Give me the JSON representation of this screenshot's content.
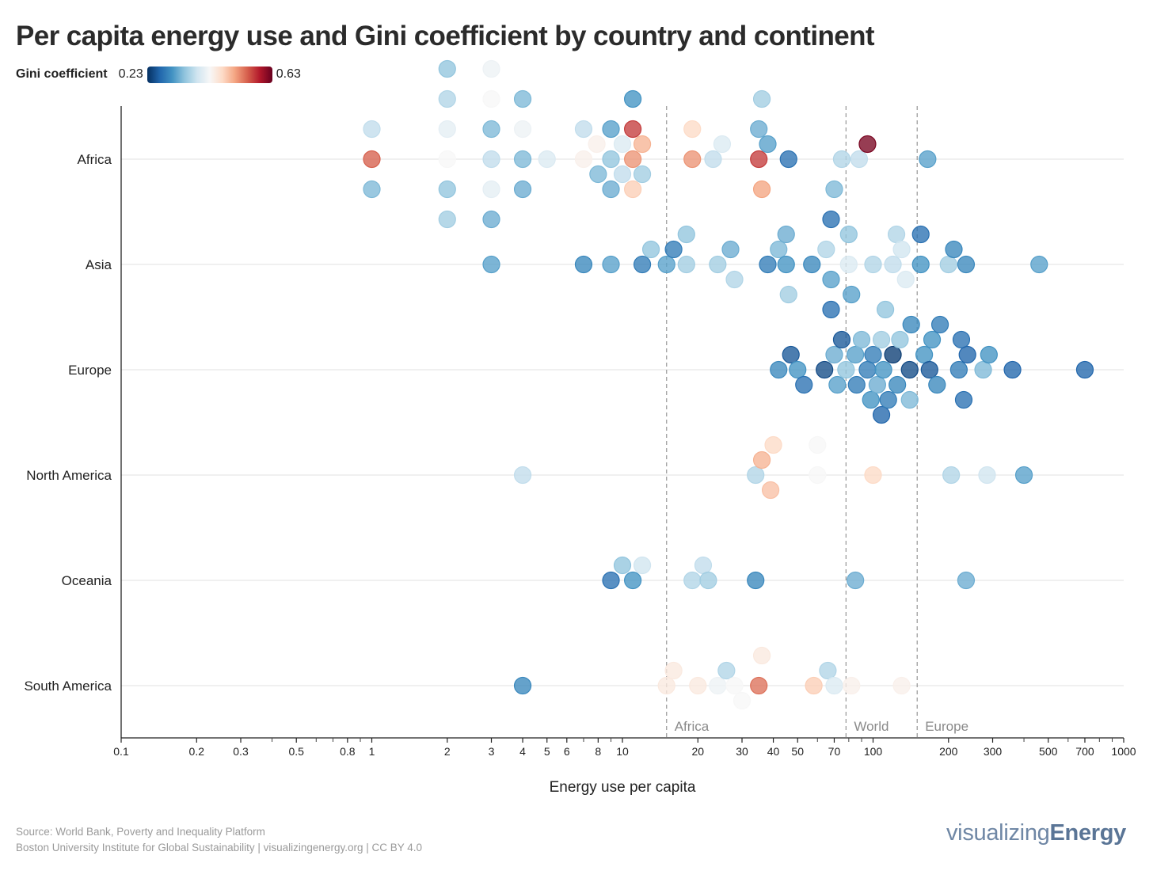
{
  "page": {
    "title": "Per capita energy use and Gini coefficient by country and continent",
    "source_line1": "Source: World Bank, Poverty and Inequality Platform",
    "source_line2": "Boston University Institute for Global Sustainability | visualizingenergy.org | CC BY 4.0",
    "brand_prefix": "visualizing",
    "brand_suffix": "Energy"
  },
  "legend": {
    "title": "Gini coefficient",
    "min_label": "0.23",
    "max_label": "0.63",
    "min": 0.23,
    "max": 0.63,
    "scale_colors": [
      "#053061",
      "#2166ac",
      "#4393c3",
      "#92c5de",
      "#d1e5f0",
      "#f7f7f7",
      "#fddbc7",
      "#f4a582",
      "#d6604d",
      "#b2182b",
      "#67001f"
    ]
  },
  "chart_data": {
    "type": "scatter",
    "title": "Per capita energy use and Gini coefficient by country and continent",
    "xlabel": "Energy use per capita",
    "ylabel": "",
    "xscale": "log",
    "xlim": [
      0.1,
      1000
    ],
    "x_ticks": [
      0.1,
      0.2,
      0.3,
      0.5,
      0.8,
      1,
      2,
      3,
      4,
      5,
      6,
      8,
      10,
      20,
      30,
      40,
      50,
      70,
      100,
      200,
      300,
      500,
      700,
      1000
    ],
    "x_tick_labels": [
      "0.1",
      "0.2",
      "0.3",
      "0.5",
      "0.8",
      "1",
      "2",
      "3",
      "4",
      "5",
      "6",
      "8",
      "10",
      "20",
      "30",
      "40",
      "50",
      "70",
      "100",
      "200",
      "300",
      "500",
      "700",
      "1000"
    ],
    "categories": [
      "Africa",
      "Asia",
      "Europe",
      "North America",
      "Oceania",
      "South America"
    ],
    "grid": "horizontal",
    "reference_lines": [
      {
        "label": "Africa",
        "x": 15
      },
      {
        "label": "World",
        "x": 78
      },
      {
        "label": "Europe",
        "x": 150
      }
    ],
    "series": [
      {
        "category": "Africa",
        "points": [
          {
            "x": 1,
            "gini": 0.55
          },
          {
            "x": 1,
            "gini": 0.38
          },
          {
            "x": 1,
            "gini": 0.34
          },
          {
            "x": 2,
            "gini": 0.43
          },
          {
            "x": 2,
            "gini": 0.41
          },
          {
            "x": 2,
            "gini": 0.35
          },
          {
            "x": 2,
            "gini": 0.37
          },
          {
            "x": 2,
            "gini": 0.36
          },
          {
            "x": 2,
            "gini": 0.35
          },
          {
            "x": 3,
            "gini": 0.38
          },
          {
            "x": 3,
            "gini": 0.34
          },
          {
            "x": 3,
            "gini": 0.41
          },
          {
            "x": 3,
            "gini": 0.43
          },
          {
            "x": 3,
            "gini": 0.33
          },
          {
            "x": 3,
            "gini": 0.42
          },
          {
            "x": 4,
            "gini": 0.34
          },
          {
            "x": 4,
            "gini": 0.42
          },
          {
            "x": 4,
            "gini": 0.33
          },
          {
            "x": 4,
            "gini": 0.34
          },
          {
            "x": 5,
            "gini": 0.4
          },
          {
            "x": 7,
            "gini": 0.44
          },
          {
            "x": 7,
            "gini": 0.38
          },
          {
            "x": 7.9,
            "gini": 0.44
          },
          {
            "x": 8,
            "gini": 0.34
          },
          {
            "x": 9,
            "gini": 0.35
          },
          {
            "x": 9,
            "gini": 0.32
          },
          {
            "x": 9,
            "gini": 0.33
          },
          {
            "x": 10,
            "gini": 0.4
          },
          {
            "x": 10,
            "gini": 0.38
          },
          {
            "x": 11,
            "gini": 0.52
          },
          {
            "x": 11,
            "gini": 0.57
          },
          {
            "x": 11,
            "gini": 0.48
          },
          {
            "x": 11,
            "gini": 0.31
          },
          {
            "x": 12,
            "gini": 0.5
          },
          {
            "x": 12,
            "gini": 0.36
          },
          {
            "x": 19,
            "gini": 0.52
          },
          {
            "x": 19,
            "gini": 0.47
          },
          {
            "x": 23,
            "gini": 0.38
          },
          {
            "x": 25,
            "gini": 0.4
          },
          {
            "x": 35,
            "gini": 0.57
          },
          {
            "x": 35,
            "gini": 0.33
          },
          {
            "x": 36,
            "gini": 0.51
          },
          {
            "x": 36,
            "gini": 0.36
          },
          {
            "x": 38,
            "gini": 0.32
          },
          {
            "x": 46,
            "gini": 0.28
          },
          {
            "x": 75,
            "gini": 0.37
          },
          {
            "x": 88,
            "gini": 0.38
          },
          {
            "x": 95,
            "gini": 0.62
          },
          {
            "x": 165,
            "gini": 0.32
          }
        ]
      },
      {
        "category": "Asia",
        "points": [
          {
            "x": 3,
            "gini": 0.32
          },
          {
            "x": 7,
            "gini": 0.3
          },
          {
            "x": 9,
            "gini": 0.32
          },
          {
            "x": 12,
            "gini": 0.29
          },
          {
            "x": 13,
            "gini": 0.35
          },
          {
            "x": 15,
            "gini": 0.32
          },
          {
            "x": 16,
            "gini": 0.29
          },
          {
            "x": 18,
            "gini": 0.36
          },
          {
            "x": 18,
            "gini": 0.35
          },
          {
            "x": 24,
            "gini": 0.36
          },
          {
            "x": 27,
            "gini": 0.33
          },
          {
            "x": 28,
            "gini": 0.37
          },
          {
            "x": 38,
            "gini": 0.29
          },
          {
            "x": 42,
            "gini": 0.34
          },
          {
            "x": 45,
            "gini": 0.31
          },
          {
            "x": 45,
            "gini": 0.33
          },
          {
            "x": 46,
            "gini": 0.36
          },
          {
            "x": 57,
            "gini": 0.3
          },
          {
            "x": 65,
            "gini": 0.37
          },
          {
            "x": 68,
            "gini": 0.32
          },
          {
            "x": 68,
            "gini": 0.28
          },
          {
            "x": 68,
            "gini": 0.28
          },
          {
            "x": 70,
            "gini": 0.34
          },
          {
            "x": 80,
            "gini": 0.4
          },
          {
            "x": 80,
            "gini": 0.35
          },
          {
            "x": 82,
            "gini": 0.32
          },
          {
            "x": 100,
            "gini": 0.37
          },
          {
            "x": 120,
            "gini": 0.38
          },
          {
            "x": 124,
            "gini": 0.37
          },
          {
            "x": 130,
            "gini": 0.39
          },
          {
            "x": 135,
            "gini": 0.4
          },
          {
            "x": 155,
            "gini": 0.31
          },
          {
            "x": 155,
            "gini": 0.28
          },
          {
            "x": 200,
            "gini": 0.36
          },
          {
            "x": 210,
            "gini": 0.3
          },
          {
            "x": 235,
            "gini": 0.3
          },
          {
            "x": 460,
            "gini": 0.32
          }
        ]
      },
      {
        "category": "Europe",
        "points": [
          {
            "x": 42,
            "gini": 0.3
          },
          {
            "x": 47,
            "gini": 0.26
          },
          {
            "x": 50,
            "gini": 0.31
          },
          {
            "x": 53,
            "gini": 0.28
          },
          {
            "x": 64,
            "gini": 0.25
          },
          {
            "x": 70,
            "gini": 0.33
          },
          {
            "x": 72,
            "gini": 0.32
          },
          {
            "x": 75,
            "gini": 0.26
          },
          {
            "x": 78,
            "gini": 0.35
          },
          {
            "x": 85,
            "gini": 0.32
          },
          {
            "x": 86,
            "gini": 0.29
          },
          {
            "x": 90,
            "gini": 0.34
          },
          {
            "x": 95,
            "gini": 0.29
          },
          {
            "x": 98,
            "gini": 0.31
          },
          {
            "x": 100,
            "gini": 0.29
          },
          {
            "x": 104,
            "gini": 0.33
          },
          {
            "x": 108,
            "gini": 0.36
          },
          {
            "x": 108,
            "gini": 0.27
          },
          {
            "x": 110,
            "gini": 0.31
          },
          {
            "x": 112,
            "gini": 0.35
          },
          {
            "x": 115,
            "gini": 0.29
          },
          {
            "x": 120,
            "gini": 0.24
          },
          {
            "x": 125,
            "gini": 0.3
          },
          {
            "x": 128,
            "gini": 0.35
          },
          {
            "x": 140,
            "gini": 0.25
          },
          {
            "x": 140,
            "gini": 0.34
          },
          {
            "x": 142,
            "gini": 0.3
          },
          {
            "x": 160,
            "gini": 0.31
          },
          {
            "x": 168,
            "gini": 0.26
          },
          {
            "x": 172,
            "gini": 0.31
          },
          {
            "x": 180,
            "gini": 0.3
          },
          {
            "x": 185,
            "gini": 0.29
          },
          {
            "x": 220,
            "gini": 0.29
          },
          {
            "x": 225,
            "gini": 0.28
          },
          {
            "x": 230,
            "gini": 0.28
          },
          {
            "x": 238,
            "gini": 0.27
          },
          {
            "x": 275,
            "gini": 0.34
          },
          {
            "x": 290,
            "gini": 0.31
          },
          {
            "x": 360,
            "gini": 0.27
          },
          {
            "x": 700,
            "gini": 0.27
          }
        ]
      },
      {
        "category": "North America",
        "points": [
          {
            "x": 4,
            "gini": 0.38
          },
          {
            "x": 34,
            "gini": 0.37
          },
          {
            "x": 36,
            "gini": 0.5
          },
          {
            "x": 39,
            "gini": 0.49
          },
          {
            "x": 40,
            "gini": 0.47
          },
          {
            "x": 60,
            "gini": 0.43
          },
          {
            "x": 60,
            "gini": 0.43
          },
          {
            "x": 100,
            "gini": 0.47
          },
          {
            "x": 205,
            "gini": 0.37
          },
          {
            "x": 285,
            "gini": 0.39
          },
          {
            "x": 400,
            "gini": 0.32
          }
        ]
      },
      {
        "category": "Oceania",
        "points": [
          {
            "x": 9,
            "gini": 0.28
          },
          {
            "x": 10,
            "gini": 0.35
          },
          {
            "x": 11,
            "gini": 0.31
          },
          {
            "x": 12,
            "gini": 0.39
          },
          {
            "x": 19,
            "gini": 0.37
          },
          {
            "x": 21,
            "gini": 0.38
          },
          {
            "x": 22,
            "gini": 0.36
          },
          {
            "x": 34,
            "gini": 0.3
          },
          {
            "x": 85,
            "gini": 0.33
          },
          {
            "x": 235,
            "gini": 0.33
          }
        ]
      },
      {
        "category": "South America",
        "points": [
          {
            "x": 4,
            "gini": 0.3
          },
          {
            "x": 15,
            "gini": 0.45
          },
          {
            "x": 16,
            "gini": 0.45
          },
          {
            "x": 20,
            "gini": 0.45
          },
          {
            "x": 24,
            "gini": 0.42
          },
          {
            "x": 26,
            "gini": 0.37
          },
          {
            "x": 28,
            "gini": 0.43
          },
          {
            "x": 30,
            "gini": 0.43
          },
          {
            "x": 35,
            "gini": 0.54
          },
          {
            "x": 36,
            "gini": 0.45
          },
          {
            "x": 58,
            "gini": 0.48
          },
          {
            "x": 66,
            "gini": 0.37
          },
          {
            "x": 70,
            "gini": 0.4
          },
          {
            "x": 82,
            "gini": 0.44
          },
          {
            "x": 130,
            "gini": 0.44
          }
        ]
      }
    ]
  }
}
